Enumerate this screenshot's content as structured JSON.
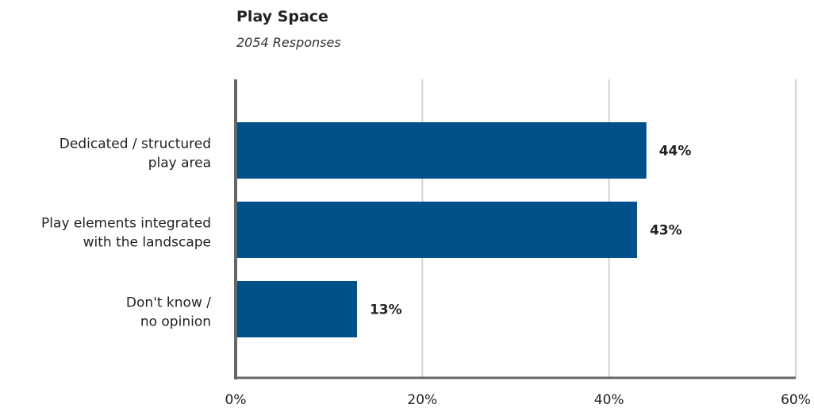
{
  "chart_data": {
    "type": "bar",
    "orientation": "horizontal",
    "title": "Play Space",
    "subtitle": "2054 Responses",
    "categories": [
      [
        "Dedicated / structured",
        "play area"
      ],
      [
        "Play elements integrated",
        "with the landscape"
      ],
      [
        "Don't know /",
        "no opinion"
      ]
    ],
    "values": [
      44,
      43,
      13
    ],
    "value_labels": [
      "44%",
      "43%",
      "13%"
    ],
    "xlim": [
      0,
      60
    ],
    "xticks": [
      0,
      20,
      40,
      60
    ],
    "xtick_labels": [
      "0%",
      "20%",
      "40%",
      "60%"
    ],
    "grid": true,
    "bar_color": "#00508a",
    "grid_color": "#d3d3d3",
    "axis_color": "#666666"
  }
}
